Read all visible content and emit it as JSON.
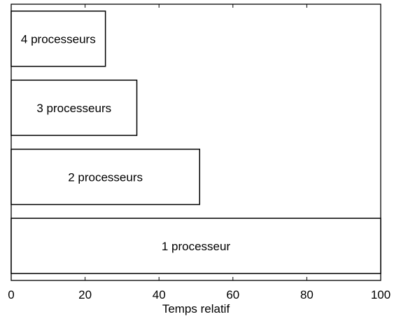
{
  "chart_data": {
    "type": "bar",
    "orientation": "horizontal",
    "categories": [
      "1 processeur",
      "2 processeurs",
      "3 processeurs",
      "4 processeurs"
    ],
    "values": [
      100,
      51,
      34,
      25.5
    ],
    "bar_labels": [
      "1 processeur",
      "2 processeurs",
      "3 processeurs",
      "4 processeurs"
    ],
    "title": "",
    "xlabel": "Temps relatif",
    "ylabel": "",
    "xlim": [
      0,
      100
    ],
    "xticks": [
      0,
      20,
      40,
      60,
      80,
      100
    ],
    "xtick_labels": [
      "0",
      "20",
      "40",
      "60",
      "80",
      "100"
    ],
    "grid": false,
    "legend": "none",
    "colors": {
      "bar_fill": "#ffffff",
      "bar_stroke": "#000000"
    }
  }
}
